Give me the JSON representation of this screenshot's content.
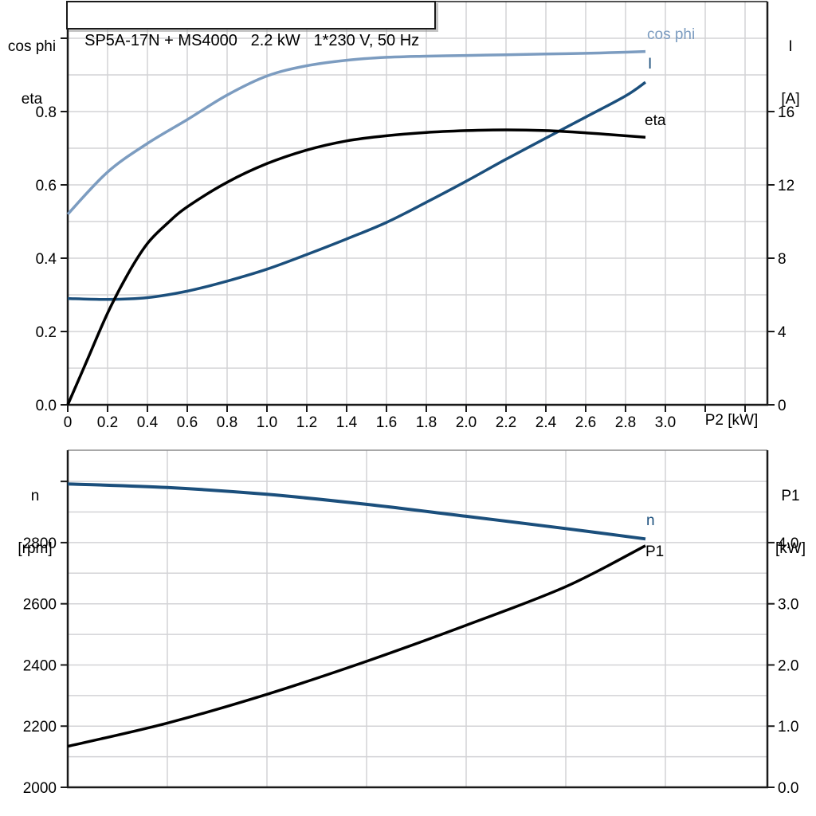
{
  "title": "SP5A-17N + MS4000   2.2 kW   1*230 V, 50 Hz",
  "colors": {
    "grid": "#D3D3D6",
    "axis": "#1a1a1a",
    "cos_phi": "#7C9CC0",
    "current": "#1B4F7C",
    "eta": "#000000",
    "speed": "#1B4F7C",
    "p1": "#000000"
  },
  "labels": {
    "left_header_top": {
      "line1": "cos phi",
      "line2": "eta"
    },
    "right_header_top": {
      "line1": "I",
      "line2": "[A]"
    },
    "x_label_top": "P2 [kW]",
    "left_header_bottom": {
      "line1": "n",
      "line2": "[rpm]"
    },
    "right_header_bottom": {
      "line1": "P1",
      "line2": "[kW]"
    },
    "curve_cos_phi": "cos phi",
    "curve_current": "I",
    "curve_eta": "eta",
    "curve_speed": "n",
    "curve_p1": "P1"
  },
  "chart_data": [
    {
      "type": "line",
      "title": "SP5A-17N + MS4000   2.2 kW   1*230 V, 50 Hz",
      "xlabel": "P2 [kW]",
      "x_axis": {
        "range": [
          0,
          3.512
        ],
        "grid": {
          "start": 0.2,
          "step": 0.2,
          "end": 3.4
        },
        "ticks": [
          {
            "v": 0,
            "label": "0"
          },
          {
            "v": 0.2,
            "label": "0.2"
          },
          {
            "v": 0.4,
            "label": "0.4"
          },
          {
            "v": 0.6,
            "label": "0.6"
          },
          {
            "v": 0.8,
            "label": "0.8"
          },
          {
            "v": 1.0,
            "label": "1.0"
          },
          {
            "v": 1.2,
            "label": "1.2"
          },
          {
            "v": 1.4,
            "label": "1.4"
          },
          {
            "v": 1.6,
            "label": "1.6"
          },
          {
            "v": 1.8,
            "label": "1.8"
          },
          {
            "v": 2.0,
            "label": "2.0"
          },
          {
            "v": 2.2,
            "label": "2.2"
          },
          {
            "v": 2.4,
            "label": "2.4"
          },
          {
            "v": 2.6,
            "label": "2.6"
          },
          {
            "v": 2.8,
            "label": "2.8"
          },
          {
            "v": 3.0,
            "label": "3.0"
          },
          {
            "v": 3.2
          },
          {
            "v": 3.4
          }
        ]
      },
      "left_axis": {
        "label": "cos phi / eta",
        "range": [
          0,
          1.1
        ],
        "grid": {
          "start": 0.1,
          "step": 0.1,
          "end": 1.0
        },
        "ticks": [
          {
            "v": 0.0,
            "label": "0.0"
          },
          {
            "v": 0.2,
            "label": "0.2"
          },
          {
            "v": 0.4,
            "label": "0.4"
          },
          {
            "v": 0.6,
            "label": "0.6"
          },
          {
            "v": 0.8,
            "label": "0.8"
          },
          {
            "v": 1.0
          }
        ]
      },
      "right_axis": {
        "label": "I [A]",
        "range": [
          0,
          22
        ],
        "ticks": [
          {
            "v": 0,
            "label": "0"
          },
          {
            "v": 4,
            "label": "4"
          },
          {
            "v": 8,
            "label": "8"
          },
          {
            "v": 12,
            "label": "12"
          },
          {
            "v": 16,
            "label": "16"
          }
        ]
      },
      "series": [
        {
          "id": "cos-phi",
          "name": "cos phi",
          "axis": "left",
          "color": "#7C9CC0",
          "width": 3.5,
          "points": [
            [
              0,
              0.52
            ],
            [
              0.2,
              0.635
            ],
            [
              0.4,
              0.713
            ],
            [
              0.6,
              0.778
            ],
            [
              0.8,
              0.845
            ],
            [
              1.0,
              0.897
            ],
            [
              1.2,
              0.925
            ],
            [
              1.4,
              0.94
            ],
            [
              1.6,
              0.948
            ],
            [
              1.8,
              0.951
            ],
            [
              2.0,
              0.953
            ],
            [
              2.2,
              0.955
            ],
            [
              2.4,
              0.957
            ],
            [
              2.6,
              0.959
            ],
            [
              2.8,
              0.962
            ],
            [
              2.9,
              0.964
            ]
          ]
        },
        {
          "id": "current",
          "name": "I",
          "axis": "right",
          "color": "#1B4F7C",
          "width": 3.5,
          "points": [
            [
              0,
              5.8
            ],
            [
              0.2,
              5.75
            ],
            [
              0.4,
              5.85
            ],
            [
              0.6,
              6.2
            ],
            [
              0.8,
              6.75
            ],
            [
              1.0,
              7.4
            ],
            [
              1.2,
              8.2
            ],
            [
              1.4,
              9.05
            ],
            [
              1.6,
              9.95
            ],
            [
              1.8,
              11.05
            ],
            [
              2.0,
              12.2
            ],
            [
              2.2,
              13.4
            ],
            [
              2.4,
              14.55
            ],
            [
              2.6,
              15.7
            ],
            [
              2.8,
              16.85
            ],
            [
              2.9,
              17.6
            ]
          ]
        },
        {
          "id": "eta",
          "name": "eta",
          "axis": "left",
          "color": "#000000",
          "width": 3.5,
          "points": [
            [
              0,
              0
            ],
            [
              0.1,
              0.125
            ],
            [
              0.2,
              0.25
            ],
            [
              0.3,
              0.355
            ],
            [
              0.4,
              0.44
            ],
            [
              0.5,
              0.495
            ],
            [
              0.6,
              0.54
            ],
            [
              0.8,
              0.607
            ],
            [
              1.0,
              0.658
            ],
            [
              1.2,
              0.695
            ],
            [
              1.4,
              0.72
            ],
            [
              1.6,
              0.734
            ],
            [
              1.8,
              0.743
            ],
            [
              2.0,
              0.748
            ],
            [
              2.2,
              0.75
            ],
            [
              2.4,
              0.748
            ],
            [
              2.6,
              0.742
            ],
            [
              2.8,
              0.734
            ],
            [
              2.9,
              0.73
            ]
          ]
        }
      ]
    },
    {
      "type": "line",
      "title": "",
      "xlabel": "",
      "x_axis": {
        "range": [
          0,
          3.512
        ],
        "grid": {
          "start": 0.5,
          "step": 0.5,
          "end": 3.0
        },
        "ticks": []
      },
      "left_axis": {
        "label": "n [rpm]",
        "range": [
          2000,
          3102
        ],
        "grid": {
          "start": 2100,
          "step": 100,
          "end": 3000
        },
        "ticks": [
          {
            "v": 2000,
            "label": "2000"
          },
          {
            "v": 2200,
            "label": "2200"
          },
          {
            "v": 2400,
            "label": "2400"
          },
          {
            "v": 2600,
            "label": "2600"
          },
          {
            "v": 2800,
            "label": "2800"
          },
          {
            "v": 3000
          }
        ]
      },
      "right_axis": {
        "label": "P1 [kW]",
        "range": [
          0,
          5.51
        ],
        "ticks": [
          {
            "v": 0,
            "label": "0.0"
          },
          {
            "v": 1,
            "label": "1.0"
          },
          {
            "v": 2,
            "label": "2.0"
          },
          {
            "v": 3,
            "label": "3.0"
          },
          {
            "v": 4,
            "label": "4.0"
          }
        ]
      },
      "series": [
        {
          "id": "speed",
          "name": "n",
          "axis": "left",
          "color": "#1B4F7C",
          "width": 4,
          "points": [
            [
              0,
              2992
            ],
            [
              0.5,
              2980
            ],
            [
              1.0,
              2958
            ],
            [
              1.5,
              2925
            ],
            [
              2.0,
              2886
            ],
            [
              2.5,
              2846
            ],
            [
              2.9,
              2812
            ]
          ]
        },
        {
          "id": "p1",
          "name": "P1",
          "axis": "right",
          "color": "#000000",
          "width": 3.5,
          "points": [
            [
              0,
              0.67
            ],
            [
              0.5,
              1.05
            ],
            [
              1.0,
              1.52
            ],
            [
              1.5,
              2.06
            ],
            [
              2.0,
              2.65
            ],
            [
              2.5,
              3.28
            ],
            [
              2.9,
              3.95
            ]
          ]
        }
      ]
    }
  ]
}
